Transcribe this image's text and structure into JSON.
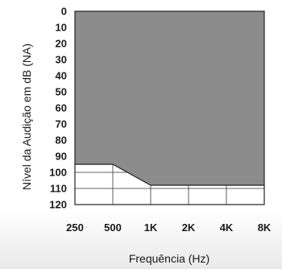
{
  "chart_data": {
    "type": "area",
    "title": "",
    "xlabel": "Frequência (Hz)",
    "ylabel": "Nível da Audição em dB (NA)",
    "x_categories": [
      "250",
      "500",
      "1K",
      "2K",
      "4K",
      "8K"
    ],
    "y_ticks": [
      "0",
      "10",
      "20",
      "30",
      "40",
      "50",
      "60",
      "70",
      "80",
      "90",
      "100",
      "110",
      "120"
    ],
    "ylim": [
      0,
      120
    ],
    "y_inverted": true,
    "grid": true,
    "series": [
      {
        "x": [
          "250",
          "500",
          "1K",
          "2K",
          "4K",
          "8K"
        ],
        "y": [
          95,
          95,
          108,
          108,
          108,
          108
        ],
        "fill": "from 0 dB down to curve",
        "color": "#8c8c8c"
      }
    ]
  }
}
